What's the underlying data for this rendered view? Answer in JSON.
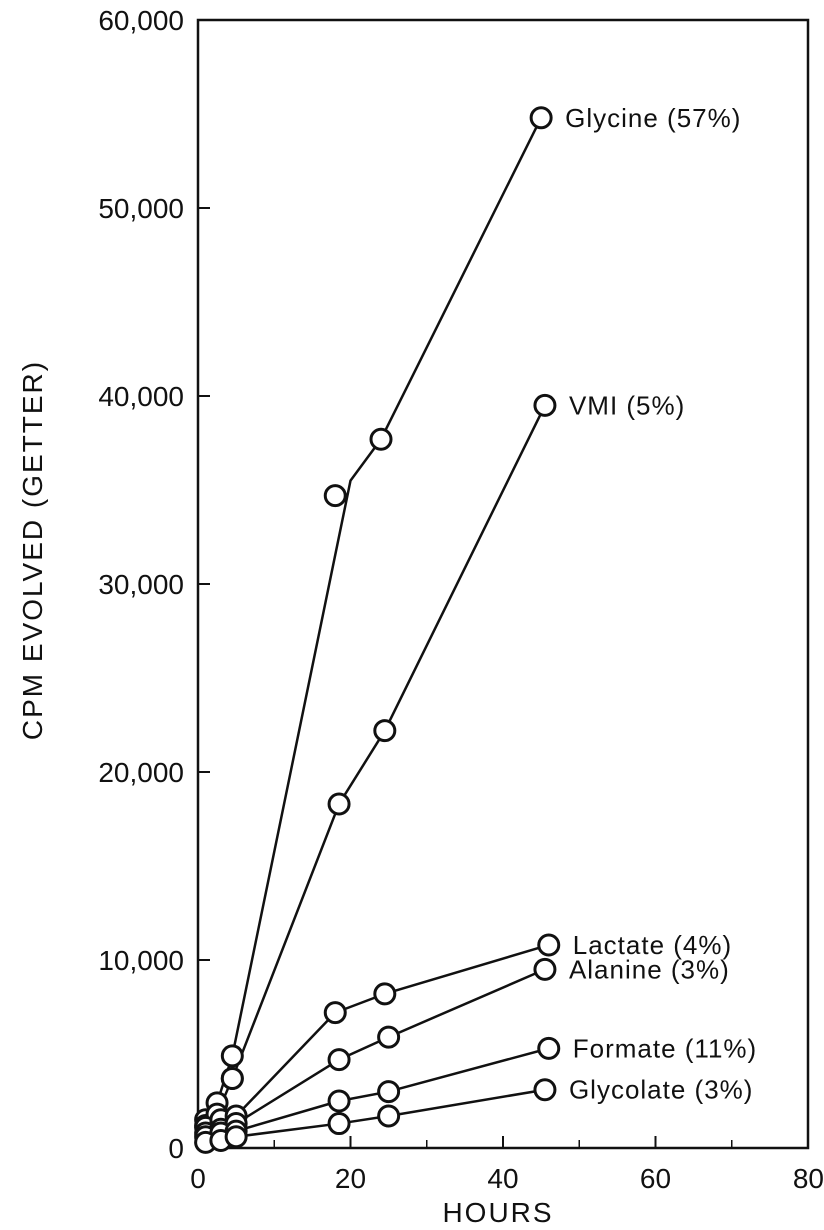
{
  "chart_data": {
    "type": "line",
    "title": "",
    "xlabel": "HOURS",
    "ylabel": "CPM  EVOLVED (GETTER)",
    "xlim": [
      0,
      80
    ],
    "ylim": [
      0,
      60000
    ],
    "xticks": [
      "0",
      "20",
      "40",
      "60",
      "80"
    ],
    "yticks": [
      "0",
      "10,000",
      "20,000",
      "30,000",
      "40,000",
      "50,000",
      "60,000"
    ],
    "grid": false,
    "legend": "none (series labelled at line ends)",
    "series": [
      {
        "name": "Glycine (57%)",
        "points": [
          [
            1,
            1500
          ],
          [
            2.5,
            2400
          ],
          [
            4.5,
            3700
          ],
          [
            4.5,
            4900
          ],
          [
            18,
            34700
          ],
          [
            24,
            37700
          ],
          [
            45,
            54800
          ]
        ],
        "line": [
          [
            1,
            1500
          ],
          [
            2.5,
            2400
          ],
          [
            4.5,
            4900
          ],
          [
            20,
            35500
          ],
          [
            24,
            37700
          ],
          [
            45,
            54800
          ]
        ]
      },
      {
        "name": "VMI (5%)",
        "points": [
          [
            1,
            1200
          ],
          [
            2.5,
            1800
          ],
          [
            4.5,
            3700
          ],
          [
            18.5,
            18300
          ],
          [
            24.5,
            22200
          ],
          [
            45.5,
            39500
          ]
        ],
        "line": [
          [
            1,
            1200
          ],
          [
            2.5,
            1800
          ],
          [
            4.5,
            3700
          ],
          [
            18.5,
            18300
          ],
          [
            24.5,
            22200
          ],
          [
            45.5,
            39500
          ]
        ]
      },
      {
        "name": "Lactate (4%)",
        "points": [
          [
            1,
            1100
          ],
          [
            3,
            1500
          ],
          [
            5,
            1700
          ],
          [
            18,
            7200
          ],
          [
            24.5,
            8200
          ],
          [
            46,
            10800
          ]
        ],
        "line": [
          [
            1,
            1100
          ],
          [
            3,
            1500
          ],
          [
            5,
            1700
          ],
          [
            18,
            7200
          ],
          [
            24.5,
            8200
          ],
          [
            46,
            10800
          ]
        ]
      },
      {
        "name": "Alanine (3%)",
        "points": [
          [
            1,
            800
          ],
          [
            3,
            1000
          ],
          [
            5,
            1300
          ],
          [
            18.5,
            4700
          ],
          [
            25,
            5900
          ],
          [
            45.5,
            9500
          ]
        ],
        "line": [
          [
            1,
            800
          ],
          [
            3,
            1000
          ],
          [
            5,
            1300
          ],
          [
            18.5,
            4700
          ],
          [
            25,
            5900
          ],
          [
            45.5,
            9500
          ]
        ]
      },
      {
        "name": "Formate (11%)",
        "points": [
          [
            1,
            600
          ],
          [
            3,
            800
          ],
          [
            5,
            900
          ],
          [
            18.5,
            2500
          ],
          [
            25,
            3000
          ],
          [
            46,
            5300
          ]
        ],
        "line": [
          [
            1,
            600
          ],
          [
            3,
            800
          ],
          [
            5,
            900
          ],
          [
            18.5,
            2500
          ],
          [
            25,
            3000
          ],
          [
            46,
            5300
          ]
        ]
      },
      {
        "name": "Glycolate (3%)",
        "points": [
          [
            1,
            300
          ],
          [
            3,
            400
          ],
          [
            5,
            600
          ],
          [
            18.5,
            1300
          ],
          [
            25,
            1700
          ],
          [
            45.5,
            3100
          ]
        ],
        "line": [
          [
            1,
            300
          ],
          [
            3,
            400
          ],
          [
            5,
            600
          ],
          [
            18.5,
            1300
          ],
          [
            25,
            1700
          ],
          [
            45.5,
            3100
          ]
        ]
      }
    ]
  }
}
